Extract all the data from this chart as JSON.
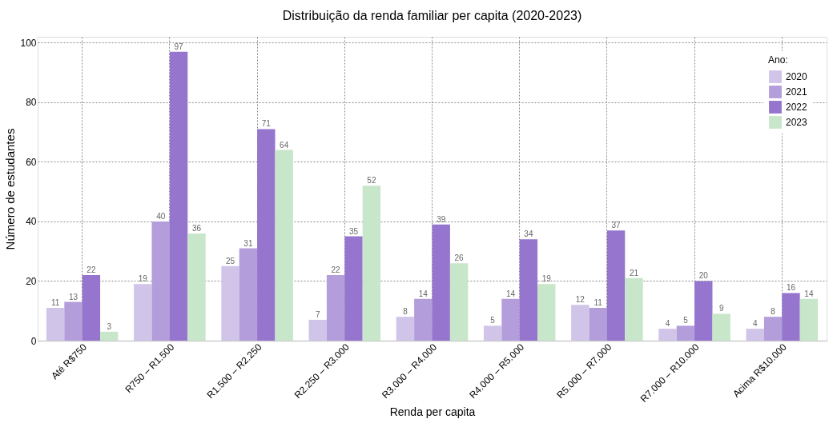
{
  "chart_data": {
    "type": "bar",
    "title": "Distribuição da renda familiar per capita (2020-2023)",
    "xlabel": "Renda per capita",
    "ylabel": "Número de estudantes",
    "legend_title": "Ano:",
    "categories": [
      "Até R$750",
      "R750 – R1.500",
      "R1.500 – R2.250",
      "R2.250 – R3.000",
      "R3.000 – R4.000",
      "R4.000 – R5.000",
      "R5.000 – R7.000",
      "R7.000 – R10.000",
      "Acima R$10.000"
    ],
    "series": [
      {
        "name": "2020",
        "color": "#d1c4e9",
        "values": [
          11,
          19,
          25,
          7,
          8,
          5,
          12,
          4,
          4
        ]
      },
      {
        "name": "2021",
        "color": "#b39ddb",
        "values": [
          13,
          40,
          31,
          22,
          14,
          14,
          11,
          5,
          8
        ]
      },
      {
        "name": "2022",
        "color": "#9575cd",
        "values": [
          22,
          97,
          71,
          35,
          39,
          34,
          37,
          20,
          16
        ]
      },
      {
        "name": "2023",
        "color": "#c8e6c9",
        "values": [
          3,
          36,
          64,
          52,
          26,
          19,
          21,
          9,
          14
        ]
      }
    ],
    "ylim": [
      0,
      102
    ],
    "yticks": [
      0,
      20,
      40,
      60,
      80,
      100
    ],
    "grid": true,
    "legend": "top right",
    "data_labels": true
  }
}
